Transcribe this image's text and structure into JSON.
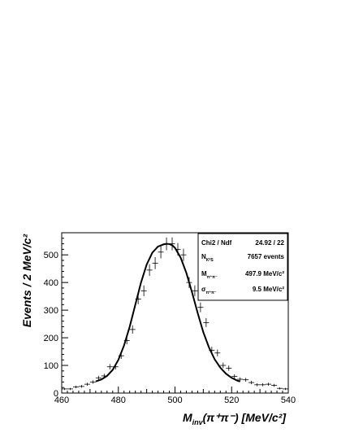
{
  "chart_data": {
    "type": "scatter",
    "xlabel": {
      "main": "M",
      "sub": "inv",
      "rest": "(π⁺π⁻) [MeV/c²]"
    },
    "ylabel": "Events / 2 MeV/c²",
    "xlim": [
      460,
      540
    ],
    "ylim": [
      0,
      580
    ],
    "xticks": [
      460,
      480,
      500,
      520,
      540
    ],
    "yticks": [
      0,
      100,
      200,
      300,
      400,
      500
    ],
    "grid": false,
    "series": [
      {
        "style": "histogram-crosses",
        "x": [
          461,
          463,
          465,
          467,
          469,
          471,
          473,
          475,
          477,
          479,
          481,
          483,
          485,
          487,
          489,
          491,
          493,
          495,
          497,
          499,
          501,
          503,
          505,
          507,
          509,
          511,
          513,
          515,
          517,
          519,
          521,
          523,
          525,
          527,
          529,
          531,
          533,
          535,
          537,
          539
        ],
        "values": [
          15,
          15,
          22,
          24,
          32,
          40,
          55,
          62,
          95,
          95,
          135,
          190,
          230,
          340,
          370,
          445,
          470,
          510,
          540,
          540,
          520,
          500,
          400,
          370,
          310,
          255,
          155,
          145,
          100,
          90,
          60,
          50,
          48,
          38,
          30,
          30,
          32,
          28,
          17,
          15
        ]
      },
      {
        "style": "fit-curve",
        "x": [
          472,
          474,
          476,
          478,
          480,
          482,
          484,
          486,
          488,
          490,
          492,
          494,
          496,
          497,
          498,
          499,
          500,
          502,
          504,
          506,
          508,
          510,
          512,
          514,
          516,
          518,
          520,
          522,
          523
        ],
        "values": [
          42,
          49,
          62,
          84,
          120,
          172,
          240,
          320,
          400,
          465,
          508,
          530,
          538,
          540,
          539,
          535,
          525,
          490,
          435,
          365,
          290,
          220,
          165,
          122,
          92,
          70,
          55,
          45,
          42
        ]
      }
    ],
    "stats_box": {
      "placement": "top-right",
      "rows": [
        {
          "label": "Chi2 / Ndf",
          "value": "24.92 / 22"
        },
        {
          "label_main": "N",
          "label_sub": "K⁰S",
          "value": "7657 events"
        },
        {
          "label_main": "M",
          "label_sub": "π⁺π⁻",
          "value": "497.9 MeV/c²"
        },
        {
          "label_main": "σ",
          "label_sub": "π⁺π⁻",
          "value": "9.5 MeV/c²"
        }
      ]
    }
  }
}
